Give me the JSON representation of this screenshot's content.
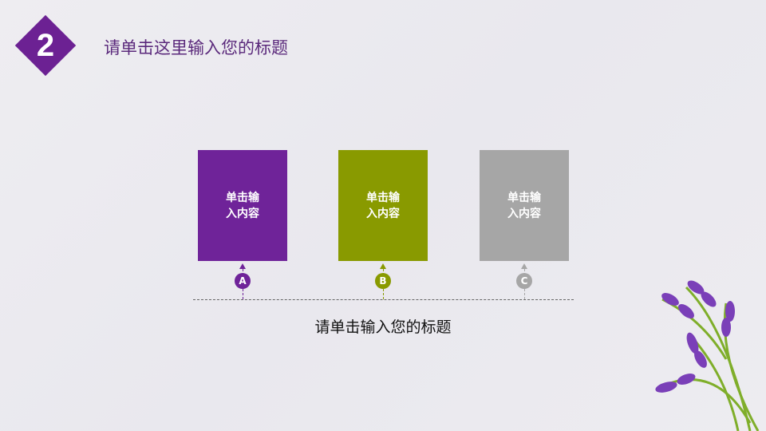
{
  "header": {
    "number": "2",
    "title": "请单击这里输入您的标题"
  },
  "items": [
    {
      "letter": "A",
      "text": "单击输\n入内容",
      "color": "#6f2399"
    },
    {
      "letter": "B",
      "text": "单击输\n入内容",
      "color": "#899a00"
    },
    {
      "letter": "C",
      "text": "单击输\n入内容",
      "color": "#a6a6a6"
    }
  ],
  "subtitle": "请单击输入您的标题"
}
